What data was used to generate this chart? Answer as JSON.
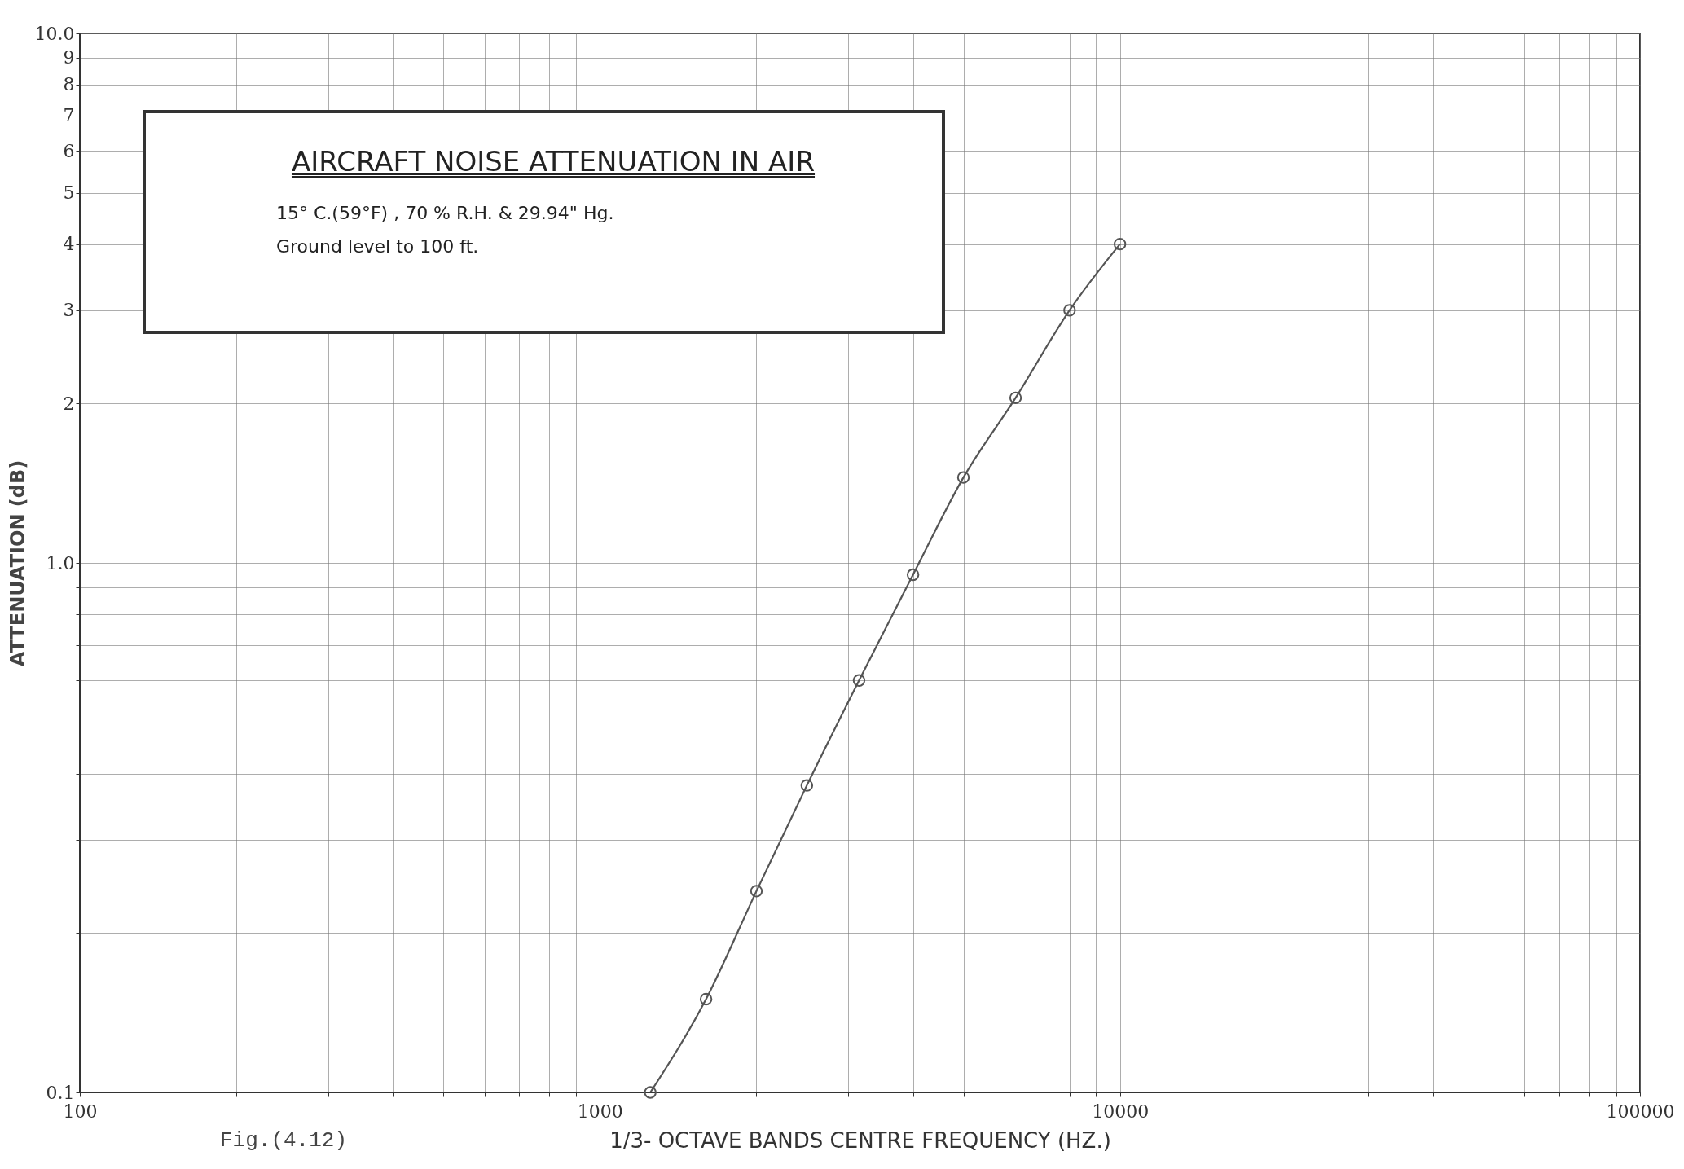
{
  "chart_data": {
    "type": "line",
    "title": "AIRCRAFT NOISE ATTENUATION IN AIR",
    "subtitle": "15° C.(59°F) , 70 % R.H. & 29.94\" Hg.",
    "annotations": [
      "Ground level to 100 ft.",
      "Fig.(4.12)"
    ],
    "xlabel": "1/3- OCTAVE BANDS CENTRE FREQUENCY (HZ.)",
    "ylabel": "ATTENUATION (dB)",
    "x": [
      1250,
      1600,
      2000,
      2500,
      3150,
      4000,
      5000,
      6300,
      8000,
      10000
    ],
    "series": [
      {
        "color": "#555555",
        "values": [
          0.1,
          0.15,
          0.24,
          0.38,
          0.6,
          0.95,
          1.45,
          2.05,
          3.0,
          4.0
        ]
      }
    ],
    "log": "xy",
    "xlim": [
      100,
      100000
    ],
    "ylim": [
      0.1,
      10
    ],
    "xticks": [
      100,
      {
        "value": 200,
        "label": null
      },
      {
        "value": 300,
        "label": null
      },
      {
        "value": 400,
        "label": null
      },
      {
        "value": 500,
        "label": null
      },
      {
        "value": 600,
        "label": null
      },
      {
        "value": 700,
        "label": null
      },
      {
        "value": 800,
        "label": null
      },
      {
        "value": 900,
        "label": null
      },
      1000,
      {
        "value": 2000,
        "label": null
      },
      {
        "value": 3000,
        "label": null
      },
      {
        "value": 4000,
        "label": null
      },
      {
        "value": 5000,
        "label": null
      },
      {
        "value": 6000,
        "label": null
      },
      {
        "value": 7000,
        "label": null
      },
      {
        "value": 8000,
        "label": null
      },
      {
        "value": 9000,
        "label": null
      },
      10000,
      {
        "value": 20000,
        "label": null
      },
      {
        "value": 30000,
        "label": null
      },
      {
        "value": 40000,
        "label": null
      },
      {
        "value": 50000,
        "label": null
      },
      {
        "value": 60000,
        "label": null
      },
      {
        "value": 70000,
        "label": null
      },
      {
        "value": 80000,
        "label": null
      },
      {
        "value": 90000,
        "label": null
      },
      100000
    ],
    "yticks": [
      {
        "value": 0.1,
        "label": "0.1"
      },
      {
        "value": 0.2,
        "label": null
      },
      {
        "value": 0.3,
        "label": null
      },
      {
        "value": 0.4,
        "label": null
      },
      {
        "value": 0.5,
        "label": null
      },
      {
        "value": 0.6,
        "label": null
      },
      {
        "value": 0.7,
        "label": null
      },
      {
        "value": 0.8,
        "label": null
      },
      {
        "value": 0.9,
        "label": null
      },
      {
        "value": 1,
        "label": "1.0"
      },
      2,
      3,
      4,
      5,
      6,
      7,
      8,
      9,
      {
        "value": 10,
        "label": "10.0"
      }
    ],
    "grid": true,
    "marker": "circle",
    "line_style": "solid"
  }
}
